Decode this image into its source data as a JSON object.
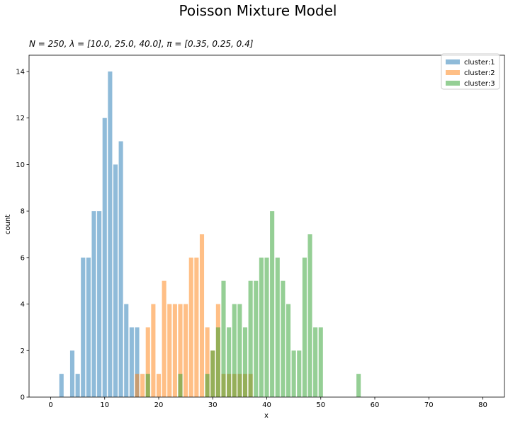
{
  "figure": {
    "suptitle": "Poisson Mixture Model",
    "subtitle": "N = 250, λ = [10.0, 25.0, 40.0], π = [0.35, 0.25, 0.4]"
  },
  "chart_data": {
    "type": "bar",
    "title": "N = 250, λ = [10.0, 25.0, 40.0], π = [0.35, 0.25, 0.4]",
    "xlabel": "x",
    "ylabel": "count",
    "xlim": [
      -4,
      84
    ],
    "ylim": [
      0,
      14.7
    ],
    "xticks": [
      0,
      10,
      20,
      30,
      40,
      50,
      60,
      70,
      80
    ],
    "yticks": [
      0,
      2,
      4,
      6,
      8,
      10,
      12,
      14
    ],
    "grid": false,
    "legend_position": "top-right",
    "series": [
      {
        "name": "cluster:1",
        "color": "#1f77b4",
        "opacity": 0.5,
        "x": [
          2,
          4,
          5,
          6,
          7,
          8,
          9,
          10,
          11,
          12,
          13,
          14,
          15,
          16
        ],
        "values": [
          1,
          2,
          1,
          6,
          6,
          8,
          8,
          12,
          14,
          10,
          11,
          4,
          3,
          3
        ]
      },
      {
        "name": "cluster:2",
        "color": "#ff7f0e",
        "opacity": 0.5,
        "x": [
          16,
          17,
          18,
          19,
          20,
          21,
          22,
          23,
          24,
          25,
          26,
          27,
          28,
          29,
          30,
          31,
          32,
          33,
          34,
          35,
          36,
          37
        ],
        "values": [
          1,
          1,
          3,
          4,
          1,
          5,
          4,
          4,
          4,
          4,
          6,
          6,
          7,
          3,
          2,
          4,
          1,
          1,
          1,
          1,
          1,
          1
        ]
      },
      {
        "name": "cluster:3",
        "color": "#2ca02c",
        "opacity": 0.5,
        "x": [
          18,
          24,
          29,
          30,
          31,
          32,
          33,
          34,
          35,
          36,
          37,
          38,
          39,
          40,
          41,
          42,
          43,
          44,
          45,
          46,
          47,
          48,
          49,
          50,
          57
        ],
        "values": [
          1,
          1,
          1,
          2,
          3,
          5,
          3,
          4,
          4,
          3,
          5,
          5,
          6,
          6,
          8,
          6,
          5,
          4,
          2,
          2,
          6,
          7,
          3,
          3,
          1
        ]
      }
    ]
  }
}
